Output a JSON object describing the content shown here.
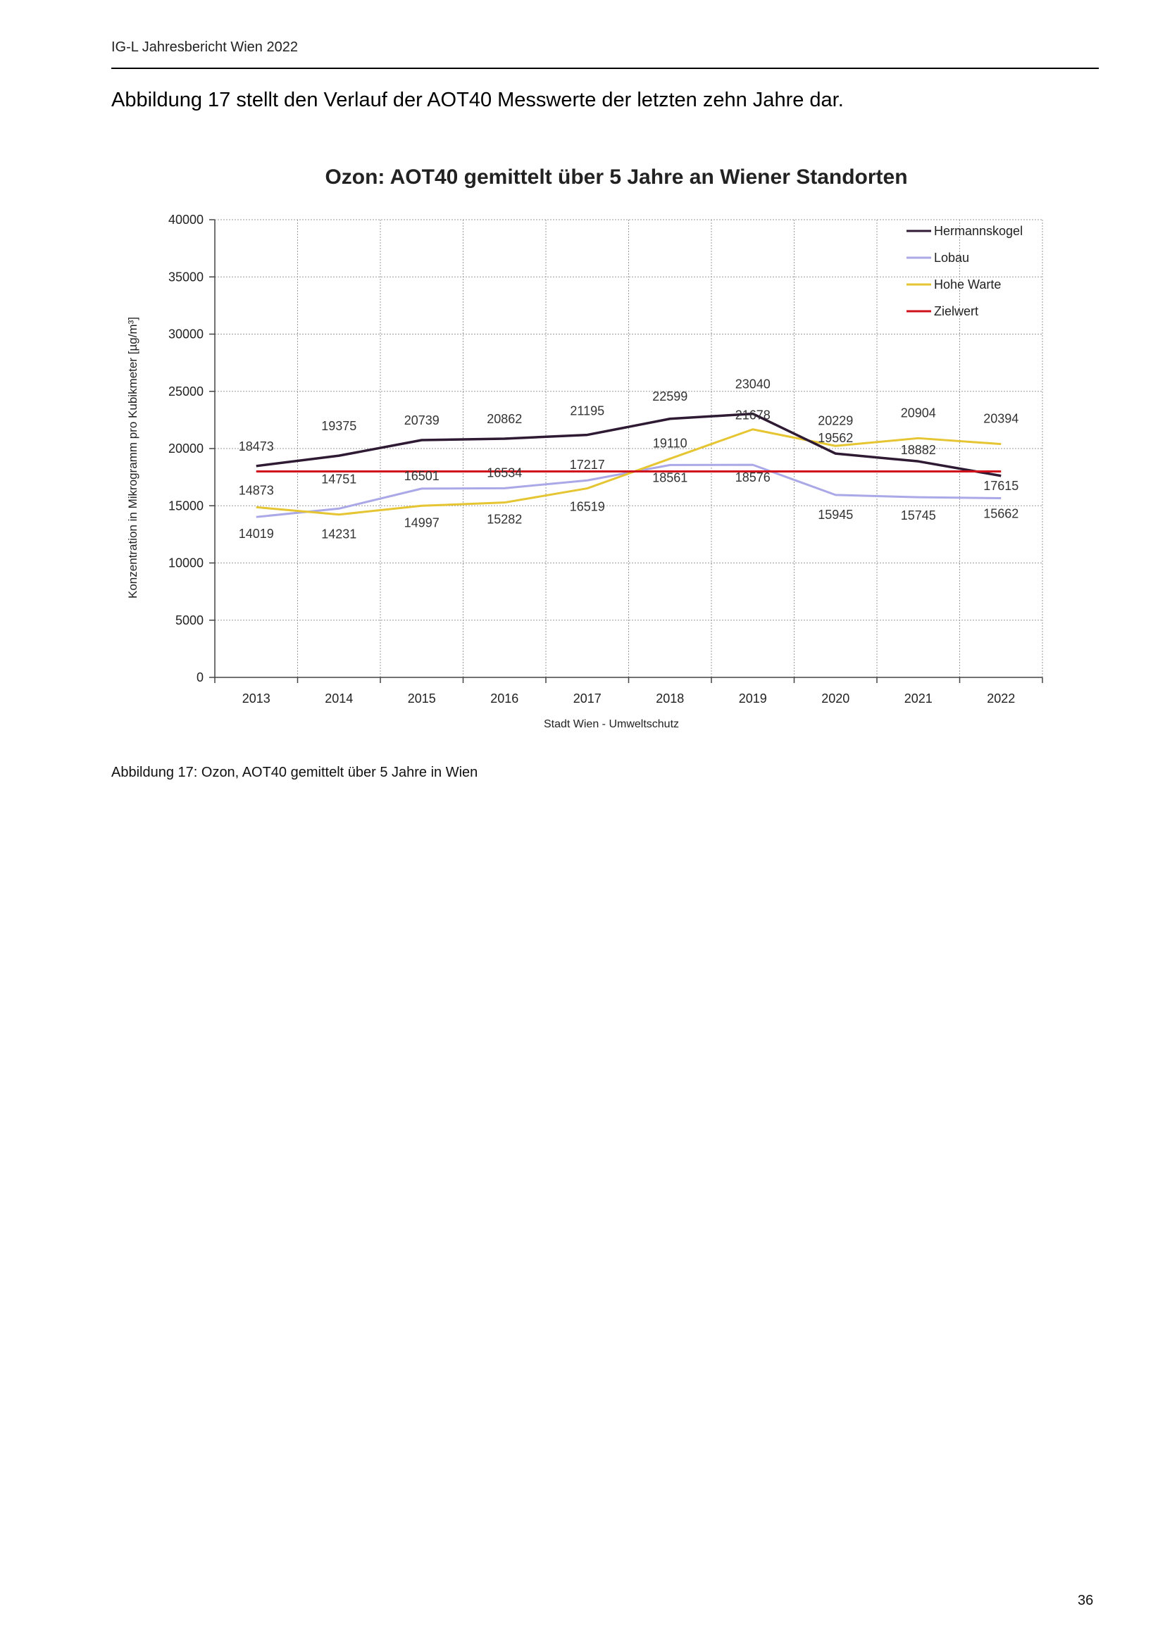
{
  "header": {
    "text": "IG-L Jahresbericht Wien 2022"
  },
  "intro": {
    "text": "Abbildung 17 stellt den Verlauf der AOT40 Messwerte der letzten zehn Jahre dar."
  },
  "caption": {
    "text": "Abbildung 17: Ozon, AOT40 gemittelt über 5 Jahre in Wien"
  },
  "page_number": "36",
  "chart_data": {
    "type": "line",
    "title": "Ozon: AOT40 gemittelt über 5 Jahre an Wiener Standorten",
    "xlabel": "Stadt Wien - Umweltschutz",
    "ylabel": "Konzentration in Mikrogramm pro Kubikmeter [µg/m³]",
    "categories": [
      "2013",
      "2014",
      "2015",
      "2016",
      "2017",
      "2018",
      "2019",
      "2020",
      "2021",
      "2022"
    ],
    "ylim": [
      0,
      40000
    ],
    "yticks": [
      "0",
      "5000",
      "10000",
      "15000",
      "20000",
      "25000",
      "30000",
      "35000",
      "40000"
    ],
    "grid": true,
    "legend_position": "top-right",
    "series": [
      {
        "name": "Hermannskogel",
        "color": "#2e1a33",
        "values": [
          18473,
          19375,
          20739,
          20862,
          21195,
          22599,
          23040,
          19562,
          18882,
          17615
        ]
      },
      {
        "name": "Lobau",
        "color": "#aaa8e6",
        "values": [
          14019,
          14751,
          16501,
          16534,
          17217,
          18561,
          18576,
          15945,
          15745,
          15662
        ]
      },
      {
        "name": "Hohe Warte",
        "color": "#e6c532",
        "values": [
          14873,
          14231,
          14997,
          15282,
          16519,
          19110,
          21678,
          20229,
          20904,
          20394
        ]
      },
      {
        "name": "Zielwert",
        "color": "#d0101a",
        "values": [
          18000,
          18000,
          18000,
          18000,
          18000,
          18000,
          18000,
          18000,
          18000,
          18000
        ]
      }
    ],
    "data_labels": [
      [
        "18473",
        "19375",
        "20739",
        "20862",
        "21195",
        "22599",
        "23040",
        "19562",
        "18882",
        "17615"
      ],
      [
        "14019",
        "14751",
        "16501",
        "16534",
        "17217",
        "18561",
        "18576",
        "15945",
        "15745",
        "15662"
      ],
      [
        "14873",
        "14231",
        "14997",
        "15282",
        "16519",
        "19110",
        "21678",
        "20229",
        "20904",
        "20394"
      ]
    ]
  }
}
